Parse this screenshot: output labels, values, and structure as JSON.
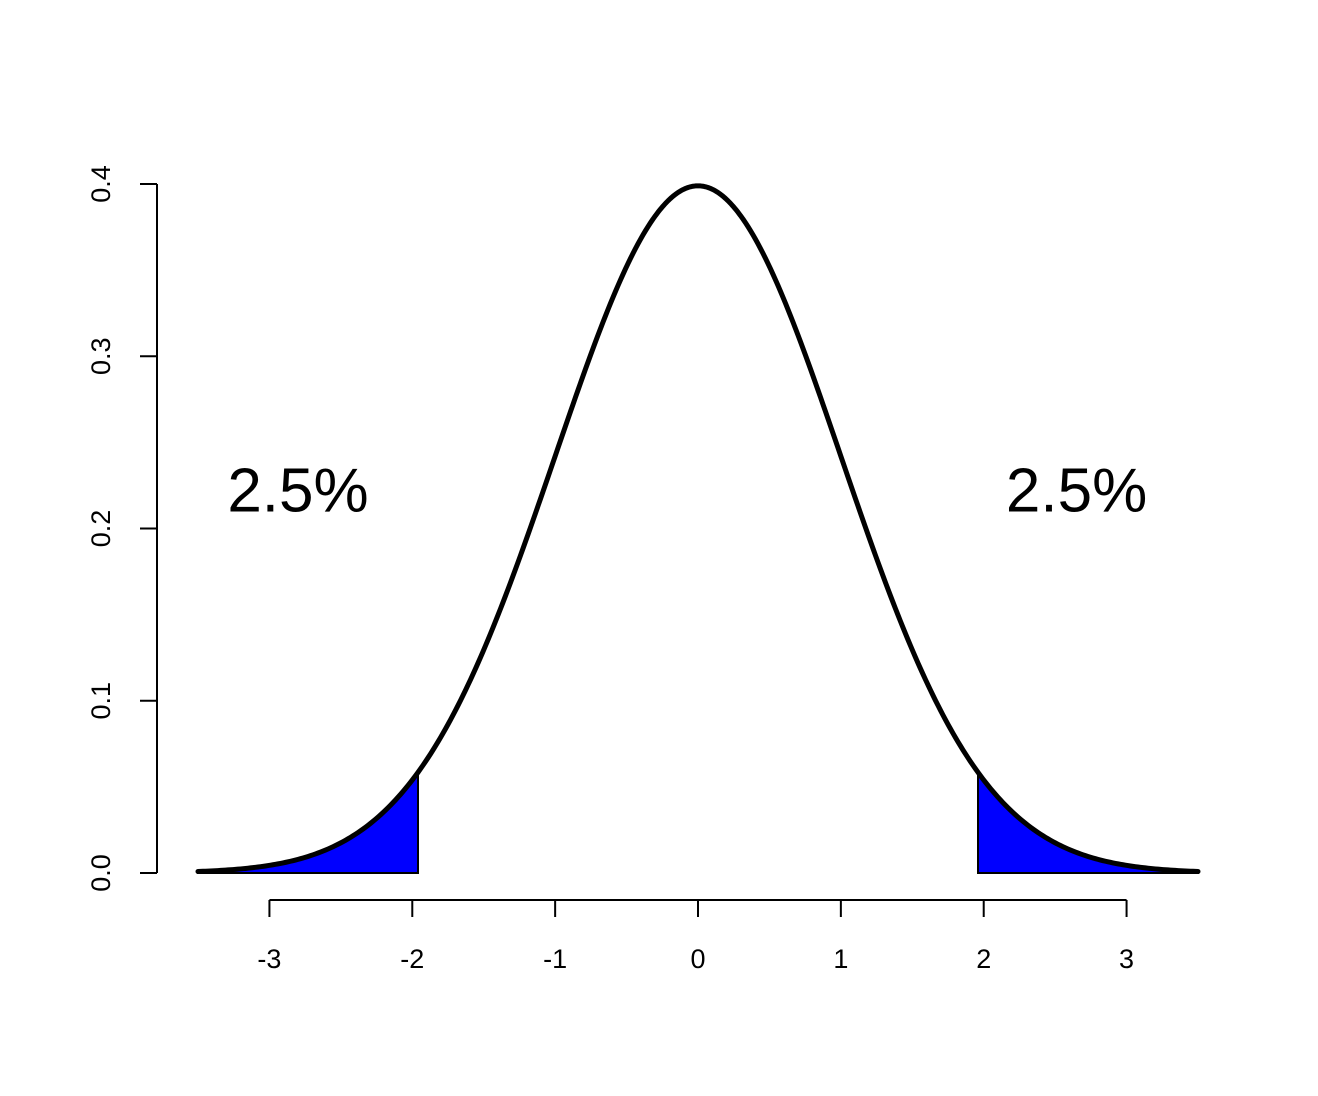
{
  "chart_data": {
    "type": "area",
    "title": "",
    "xlabel": "",
    "ylabel": "",
    "xlim": [
      -3.5,
      3.5
    ],
    "ylim": [
      0,
      0.4
    ],
    "x_ticks": [
      -3,
      -2,
      -1,
      0,
      1,
      2,
      3
    ],
    "x_tick_labels": [
      "-3",
      "-2",
      "-1",
      "0",
      "1",
      "2",
      "3"
    ],
    "y_ticks": [
      0,
      0.1,
      0.2,
      0.3,
      0.4
    ],
    "y_tick_labels": [
      "0.0",
      "0.1",
      "0.2",
      "0.3",
      "0.4"
    ],
    "curve": {
      "function": "standard normal density",
      "mean": 0,
      "sd": 1,
      "x_range": [
        -3.5,
        3.5
      ],
      "color": "#000000"
    },
    "shaded_regions": [
      {
        "from": -3.5,
        "to": -1.96,
        "color": "#0000ff"
      },
      {
        "from": 1.96,
        "to": 3.5,
        "color": "#0000ff"
      }
    ],
    "annotations": [
      {
        "text": "2.5%",
        "x": -2.8,
        "y": 0.21
      },
      {
        "text": "2.5%",
        "x": 2.65,
        "y": 0.21
      }
    ],
    "grid": false,
    "legend": "none"
  }
}
